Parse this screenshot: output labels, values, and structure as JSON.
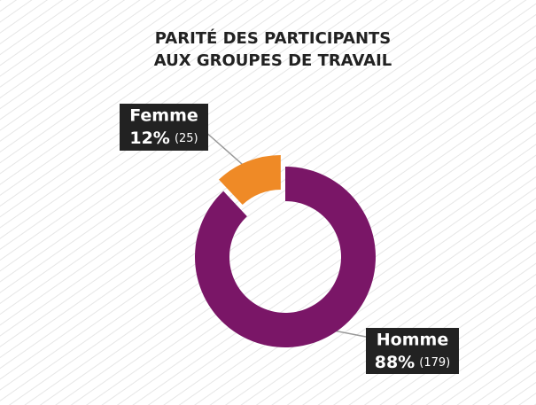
{
  "chart_data": {
    "type": "pie",
    "title": [
      "PARITÉ DES PARTICIPANTS",
      "AUX GROUPES DE TRAVAIL"
    ],
    "categories": [
      "Femme",
      "Homme"
    ],
    "values": [
      12,
      88
    ],
    "value_labels": [
      "12%",
      "88%"
    ],
    "counts": [
      25,
      179
    ],
    "count_labels": [
      "(25)",
      "(179)"
    ],
    "colors": [
      "#ef8a26",
      "#7a1667"
    ],
    "donut": true
  }
}
